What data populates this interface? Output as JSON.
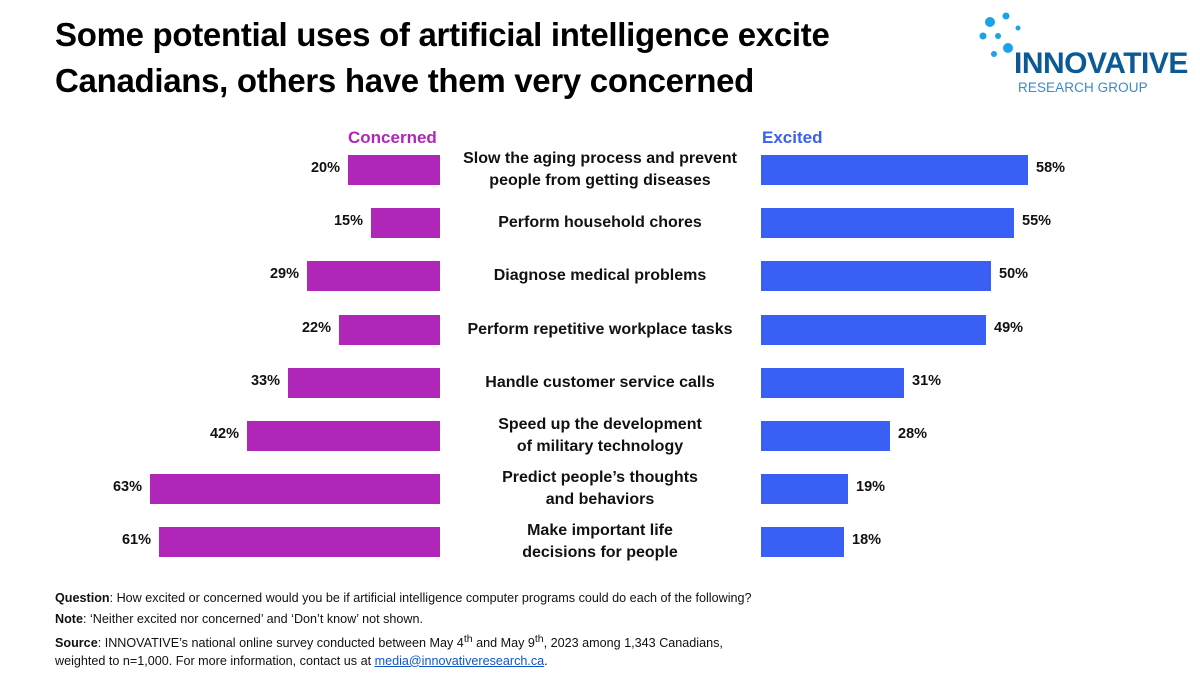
{
  "title_line1": "Some potential uses of artificial intelligence excite",
  "title_line2": "Canadians, others have them very concerned",
  "logo": {
    "name": "INNOVATIVE",
    "sub": "RESEARCH GROUP",
    "color": "#0b5a96",
    "dot_color": "#1aa3e8"
  },
  "colors": {
    "concerned": "#b026b8",
    "excited": "#3a5ff5"
  },
  "chart_data": {
    "type": "bar",
    "orientation": "horizontal-diverging",
    "categories": [
      [
        "Slow the aging process and prevent",
        "people from getting diseases"
      ],
      [
        "Perform household chores"
      ],
      [
        "Diagnose medical problems"
      ],
      [
        "Perform repetitive workplace tasks"
      ],
      [
        "Handle customer service calls"
      ],
      [
        "Speed up the development",
        "of military technology"
      ],
      [
        "Predict people’s thoughts",
        "and behaviors"
      ],
      [
        "Make important life",
        "decisions for people"
      ]
    ],
    "series": [
      {
        "name": "Concerned",
        "values": [
          20,
          15,
          29,
          22,
          33,
          42,
          63,
          61
        ],
        "labels": [
          "20%",
          "15%",
          "29%",
          "22%",
          "33%",
          "42%",
          "63%",
          "61%"
        ]
      },
      {
        "name": "Excited",
        "values": [
          58,
          55,
          50,
          49,
          31,
          28,
          19,
          18
        ],
        "labels": [
          "58%",
          "55%",
          "50%",
          "49%",
          "31%",
          "28%",
          "19%",
          "18%"
        ]
      }
    ],
    "unit": "%",
    "grid": false,
    "legend": "top labels"
  },
  "footer": {
    "question_label": "Question",
    "question_text": ": How excited or concerned would you be if artificial intelligence computer programs could do each of the following?",
    "note_label": "Note",
    "note_text": ": ‘Neither excited nor concerned’  and ‘Don’t know’  not shown.",
    "source_label": "Source",
    "source_text_a": ": INNOVATIVE’s national online survey conducted between May 4",
    "source_sup_a": "th",
    "source_text_b": " and May 9",
    "source_sup_b": "th",
    "source_text_c": ", 2023 among 1,343 Canadians,",
    "source_line2": "weighted to n=1,000. For more information, contact us at ",
    "email": "media@innovativeresearch.ca",
    "source_end": "."
  }
}
